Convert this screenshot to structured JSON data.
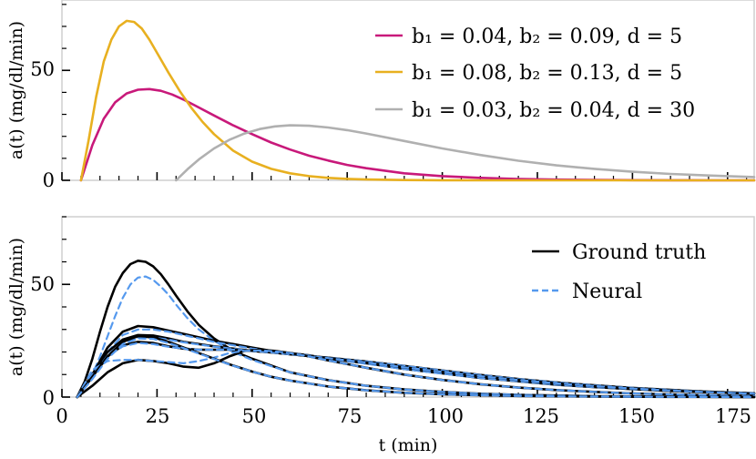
{
  "chart_data": [
    {
      "type": "line",
      "title": "",
      "xlabel": "",
      "ylabel": "a(t)  (mg/dl/min)",
      "xlim": [
        0,
        182
      ],
      "ylim": [
        0,
        82
      ],
      "yticks": [
        0,
        50
      ],
      "ytick_labels": [
        "0",
        "50"
      ],
      "legend": "top-right",
      "series": [
        {
          "name": "b₁ = 0.04, b₂ = 0.09, d = 5",
          "color": "#c8197a",
          "x": [
            5,
            8,
            11,
            14,
            17,
            20,
            23,
            26,
            29,
            32,
            35,
            40,
            45,
            50,
            55,
            60,
            65,
            70,
            75,
            80,
            90,
            100,
            110,
            120,
            130,
            140,
            150,
            160,
            170,
            182
          ],
          "y": [
            0,
            16,
            28,
            35.5,
            39.5,
            41.2,
            41.5,
            40.7,
            39,
            36.7,
            34,
            29.5,
            25,
            21,
            17.2,
            14,
            11.2,
            9,
            7,
            5.5,
            3.2,
            1.9,
            1.1,
            0.6,
            0.35,
            0.2,
            0.1,
            0.05,
            0.02,
            0
          ]
        },
        {
          "name": "b₁ = 0.08, b₂ = 0.13, d = 5",
          "color": "#e8b020",
          "x": [
            5,
            7,
            9,
            11,
            13,
            15,
            17,
            19,
            21,
            23,
            25,
            28,
            31,
            34,
            37,
            40,
            45,
            50,
            55,
            60,
            65,
            70,
            75,
            80,
            90,
            100,
            110,
            120,
            182
          ],
          "y": [
            0,
            18,
            38,
            54,
            64,
            70,
            72.5,
            72,
            69,
            64,
            58,
            49,
            40.5,
            33,
            26.5,
            21,
            13.5,
            8.5,
            5.2,
            3.2,
            1.9,
            1.1,
            0.65,
            0.38,
            0.12,
            0.04,
            0.01,
            0,
            0
          ]
        },
        {
          "name": "b₁ = 0.03, b₂ = 0.04, d = 30",
          "color": "#b0b0b0",
          "x": [
            30,
            33,
            36,
            40,
            44,
            48,
            52,
            56,
            60,
            65,
            70,
            75,
            80,
            90,
            100,
            110,
            120,
            130,
            140,
            150,
            160,
            170,
            182
          ],
          "y": [
            0,
            5,
            9.5,
            14.5,
            18.4,
            21.3,
            23.3,
            24.5,
            25,
            24.8,
            24,
            22.8,
            21.3,
            17.9,
            14.5,
            11.5,
            8.9,
            6.8,
            5.2,
            3.9,
            2.9,
            2.2,
            1.5
          ]
        }
      ]
    },
    {
      "type": "line",
      "title": "",
      "xlabel": "t  (min)",
      "ylabel": "a(t)  (mg/dl/min)",
      "xlim": [
        0,
        182
      ],
      "ylim": [
        0,
        80
      ],
      "xticks": [
        0,
        25,
        50,
        75,
        100,
        125,
        150,
        175
      ],
      "xtick_labels": [
        "0",
        "25",
        "50",
        "75",
        "100",
        "125",
        "150",
        "175"
      ],
      "yticks": [
        0,
        50
      ],
      "ytick_labels": [
        "0",
        "50"
      ],
      "legend": "top-right",
      "legend_entries": [
        {
          "label": "Ground truth",
          "color": "#000000",
          "style": "solid"
        },
        {
          "label": "Neural",
          "color": "#5599ee",
          "style": "dashed"
        }
      ],
      "series": [
        {
          "name": "Ground truth 1",
          "color": "#000000",
          "style": "solid",
          "x": [
            4,
            6,
            8,
            10,
            12,
            14,
            16,
            18,
            20,
            22,
            24,
            26,
            28,
            30,
            33,
            36,
            40,
            45,
            50,
            60,
            70,
            80,
            90,
            100,
            110,
            120,
            140,
            160,
            182
          ],
          "y": [
            0,
            7,
            17,
            29,
            40,
            49,
            55,
            59,
            60.5,
            60,
            58,
            54.5,
            50,
            45,
            38,
            32,
            26,
            20.5,
            17,
            11,
            7.5,
            5,
            3.4,
            2.3,
            1.5,
            1,
            0.4,
            0.15,
            0
          ]
        },
        {
          "name": "Neural 1",
          "color": "#5599ee",
          "style": "dashed",
          "x": [
            4,
            6,
            8,
            10,
            12,
            14,
            16,
            18,
            20,
            22,
            24,
            26,
            28,
            30,
            33,
            36,
            40,
            45,
            50,
            60,
            70,
            80,
            90,
            100,
            110,
            120,
            140,
            160,
            182
          ],
          "y": [
            0,
            4,
            10,
            18,
            27,
            36,
            44,
            50,
            53,
            53.5,
            52,
            49,
            45.5,
            41,
            35,
            30,
            25,
            20,
            16.5,
            11,
            7.5,
            5,
            3.4,
            2.3,
            1.5,
            1,
            0.4,
            0.15,
            0
          ]
        },
        {
          "name": "Ground truth 2",
          "color": "#000000",
          "style": "solid",
          "x": [
            4,
            8,
            12,
            16,
            20,
            24,
            28,
            32,
            36,
            40,
            45,
            50,
            55,
            60,
            65,
            70,
            80,
            90,
            100,
            110,
            120,
            130,
            140,
            150,
            160,
            170,
            182
          ],
          "y": [
            0,
            10,
            22,
            29,
            31.5,
            31,
            29.5,
            28,
            26.5,
            25,
            23.5,
            22,
            20.5,
            19.5,
            18.5,
            17,
            15,
            12.5,
            10.5,
            8.5,
            7,
            5.5,
            4.4,
            3.5,
            2.7,
            2.1,
            1.6
          ]
        },
        {
          "name": "Neural 2",
          "color": "#5599ee",
          "style": "dashed",
          "x": [
            4,
            8,
            12,
            16,
            20,
            24,
            28,
            32,
            36,
            40,
            45,
            50,
            55,
            60,
            65,
            70,
            80,
            90,
            100,
            110,
            120,
            130,
            140,
            150,
            160,
            170,
            182
          ],
          "y": [
            0,
            9,
            20,
            27.5,
            30,
            30,
            29,
            27.5,
            26,
            24.5,
            23,
            21.5,
            20.5,
            19.5,
            18.5,
            17,
            14.8,
            12.4,
            10.4,
            8.5,
            7,
            5.5,
            4.4,
            3.5,
            2.7,
            2.1,
            1.6
          ]
        },
        {
          "name": "Ground truth 3",
          "color": "#000000",
          "style": "solid",
          "x": [
            4,
            8,
            12,
            16,
            20,
            24,
            28,
            32,
            36,
            40,
            45,
            50,
            55,
            60,
            65,
            70,
            80,
            90,
            100,
            110,
            120,
            130,
            140,
            150,
            160,
            170,
            182
          ],
          "y": [
            0,
            10,
            20,
            25.5,
            27.5,
            27.3,
            26,
            24.5,
            23.5,
            22.5,
            21.5,
            20.5,
            19.8,
            19,
            18.2,
            17.5,
            15.8,
            13.8,
            11.8,
            9.8,
            8,
            6.5,
            5.2,
            4.1,
            3.2,
            2.4,
            1.7
          ]
        },
        {
          "name": "Neural 3",
          "color": "#5599ee",
          "style": "dashed",
          "x": [
            4,
            8,
            12,
            16,
            20,
            24,
            28,
            32,
            36,
            40,
            45,
            50,
            55,
            60,
            65,
            70,
            80,
            90,
            100,
            110,
            120,
            130,
            140,
            150,
            160,
            170,
            182
          ],
          "y": [
            0,
            9,
            18.5,
            24.5,
            26.5,
            26.5,
            25.5,
            24.3,
            23.3,
            22.4,
            21.4,
            20.5,
            19.8,
            19,
            18.2,
            17.5,
            15.8,
            13.8,
            11.8,
            9.8,
            8,
            6.5,
            5.2,
            4.1,
            3.2,
            2.4,
            1.7
          ]
        },
        {
          "name": "Ground truth 4",
          "color": "#000000",
          "style": "solid",
          "x": [
            4,
            8,
            12,
            16,
            20,
            24,
            28,
            32,
            36,
            40,
            45,
            50,
            55,
            60,
            65,
            70,
            80,
            90,
            100,
            110,
            120,
            130,
            140,
            150,
            160,
            170,
            182
          ],
          "y": [
            0,
            9,
            18,
            23,
            24.5,
            24,
            22.5,
            21.5,
            21,
            21,
            21,
            20.5,
            19.8,
            19,
            18.2,
            17.3,
            15.3,
            13.2,
            11.2,
            9.3,
            7.6,
            6.1,
            4.9,
            3.8,
            2.9,
            2.2,
            1.5
          ]
        },
        {
          "name": "Neural 4",
          "color": "#5599ee",
          "style": "dashed",
          "x": [
            4,
            8,
            12,
            16,
            20,
            24,
            28,
            32,
            36,
            40,
            45,
            50,
            55,
            60,
            65,
            70,
            80,
            90,
            100,
            110,
            120,
            130,
            140,
            150,
            160,
            170,
            182
          ],
          "y": [
            0,
            10,
            18,
            22.5,
            24,
            23.5,
            22.3,
            21.5,
            21,
            21,
            21,
            20.5,
            19.8,
            19,
            18.2,
            17.3,
            15.3,
            13.2,
            11.2,
            9.3,
            7.6,
            6.1,
            4.9,
            3.8,
            2.9,
            2.2,
            1.5
          ]
        },
        {
          "name": "Ground truth 5",
          "color": "#000000",
          "style": "solid",
          "x": [
            4,
            8,
            12,
            16,
            20,
            24,
            28,
            32,
            36,
            40,
            44,
            48,
            52,
            56,
            60,
            65,
            70,
            80,
            90,
            100,
            110,
            120,
            130,
            140,
            150,
            160,
            170,
            182
          ],
          "y": [
            0,
            5,
            11,
            15,
            16.5,
            16,
            15,
            13.5,
            13,
            15,
            18,
            20.5,
            21,
            20.5,
            19.5,
            18,
            16.3,
            13,
            10,
            7.6,
            5.7,
            4.2,
            3.1,
            2.3,
            1.6,
            1.2,
            0.8,
            0.5
          ]
        },
        {
          "name": "Neural 5",
          "color": "#5599ee",
          "style": "dashed",
          "x": [
            4,
            8,
            12,
            16,
            20,
            24,
            28,
            32,
            36,
            40,
            44,
            48,
            52,
            56,
            60,
            65,
            70,
            80,
            90,
            100,
            110,
            120,
            130,
            140,
            150,
            160,
            170,
            182
          ],
          "y": [
            0,
            12,
            16,
            16.5,
            16.5,
            16,
            15.5,
            15,
            16,
            17.5,
            19.5,
            20.5,
            20.7,
            20.3,
            19.5,
            18,
            16.3,
            13,
            10,
            7.6,
            5.7,
            4.2,
            3.1,
            2.3,
            1.6,
            1.2,
            0.8,
            0.5
          ]
        },
        {
          "name": "Ground truth 6",
          "color": "#000000",
          "style": "solid",
          "x": [
            4,
            8,
            12,
            16,
            20,
            24,
            28,
            32,
            36,
            40,
            45,
            50,
            55,
            60,
            70,
            80,
            90,
            100,
            110,
            120,
            140,
            160,
            182
          ],
          "y": [
            0,
            9,
            18,
            24.5,
            27,
            26.5,
            24.5,
            22,
            19.5,
            17,
            14,
            11.3,
            9,
            7.3,
            4.7,
            3,
            1.9,
            1.2,
            0.8,
            0.5,
            0.2,
            0.08,
            0
          ]
        },
        {
          "name": "Neural 6",
          "color": "#5599ee",
          "style": "dashed",
          "x": [
            4,
            8,
            12,
            16,
            20,
            24,
            28,
            32,
            36,
            40,
            45,
            50,
            55,
            60,
            70,
            80,
            90,
            100,
            110,
            120,
            140,
            160,
            182
          ],
          "y": [
            0,
            8,
            17,
            23.5,
            26,
            25.8,
            24,
            21.7,
            19.3,
            16.9,
            13.9,
            11.3,
            9,
            7.3,
            4.7,
            3,
            1.9,
            1.2,
            0.8,
            0.5,
            0.2,
            0.08,
            0
          ]
        }
      ]
    }
  ]
}
